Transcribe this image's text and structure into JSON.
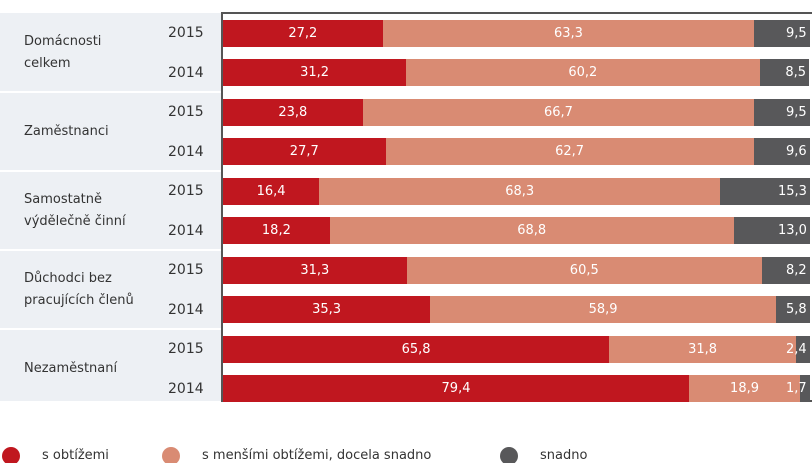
{
  "chart_data": {
    "type": "stacked-bar-horizontal",
    "groups": [
      "Domácnosti celkem",
      "Zaměstnanci",
      "Samostatně výdělečně činní",
      "Důchodci bez pracujících členů",
      "Nezaměstnaní"
    ],
    "categories": [
      "2015",
      "2014",
      "2015",
      "2014",
      "2015",
      "2014",
      "2015",
      "2014",
      "2015",
      "2014"
    ],
    "xlim": [
      0,
      100
    ],
    "series": [
      {
        "name": "s obtížemi",
        "color": "#c0171f",
        "values": [
          27.2,
          31.2,
          23.8,
          27.7,
          16.4,
          18.2,
          31.3,
          35.3,
          65.8,
          79.4
        ],
        "value_labels": [
          "27,2",
          "31,2",
          "23,8",
          "27,7",
          "16,4",
          "18,2",
          "31,3",
          "35,3",
          "65,8",
          "79,4"
        ]
      },
      {
        "name": "s menšími obtížemi, docela snadno",
        "color": "#d98b73",
        "values": [
          63.3,
          60.2,
          66.7,
          62.7,
          68.3,
          68.8,
          60.5,
          58.9,
          31.8,
          18.9
        ],
        "value_labels": [
          "63,3",
          "60,2",
          "66,7",
          "62,7",
          "68,3",
          "68,8",
          "60,5",
          "58,9",
          "31,8",
          "18,9"
        ]
      },
      {
        "name": "snadno",
        "color": "#58585a",
        "values": [
          9.5,
          8.5,
          9.5,
          9.6,
          15.3,
          13.0,
          8.2,
          5.8,
          2.4,
          1.7
        ],
        "value_labels": [
          "9,5",
          "8,5",
          "9,5",
          "9,6",
          "15,3",
          "13,0",
          "8,2",
          "5,8",
          "2,4",
          "1,7"
        ]
      }
    ]
  }
}
